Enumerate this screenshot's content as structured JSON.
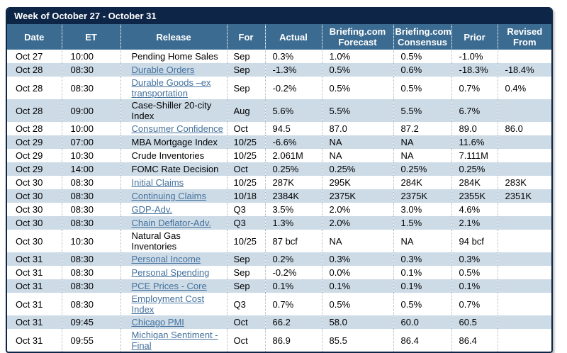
{
  "title": "Week of October 27 - October 31",
  "columns": [
    {
      "key": "date",
      "label": "Date"
    },
    {
      "key": "et",
      "label": "ET"
    },
    {
      "key": "release",
      "label": "Release"
    },
    {
      "key": "for",
      "label": "For"
    },
    {
      "key": "actual",
      "label": "Actual"
    },
    {
      "key": "forecast",
      "label": "Briefing.com Forecast"
    },
    {
      "key": "consensus",
      "label": "Briefing.com Consensus"
    },
    {
      "key": "prior",
      "label": "Prior"
    },
    {
      "key": "revised",
      "label": "Revised From"
    }
  ],
  "rows": [
    {
      "date": "Oct 27",
      "et": "10:00",
      "release": "Pending Home Sales",
      "link": false,
      "for": "Sep",
      "actual": "0.3%",
      "forecast": "1.0%",
      "consensus": "0.5%",
      "prior": "-1.0%",
      "revised": ""
    },
    {
      "date": "Oct 28",
      "et": "08:30",
      "release": "Durable Orders",
      "link": true,
      "for": "Sep",
      "actual": "-1.3%",
      "forecast": "0.5%",
      "consensus": "0.6%",
      "prior": "-18.3%",
      "revised": "-18.4%"
    },
    {
      "date": "Oct 28",
      "et": "08:30",
      "release": "Durable Goods –ex transportation",
      "link": true,
      "for": "Sep",
      "actual": "-0.2%",
      "forecast": "0.5%",
      "consensus": "0.5%",
      "prior": "0.7%",
      "revised": "0.4%"
    },
    {
      "date": "Oct 28",
      "et": "09:00",
      "release": "Case-Shiller 20-city Index",
      "link": false,
      "for": "Aug",
      "actual": "5.6%",
      "forecast": "5.5%",
      "consensus": "5.5%",
      "prior": "6.7%",
      "revised": ""
    },
    {
      "date": "Oct 28",
      "et": "10:00",
      "release": "Consumer Confidence",
      "link": true,
      "for": "Oct",
      "actual": "94.5",
      "forecast": "87.0",
      "consensus": "87.2",
      "prior": "89.0",
      "revised": "86.0"
    },
    {
      "date": "Oct 29",
      "et": "07:00",
      "release": "MBA Mortgage Index",
      "link": false,
      "for": "10/25",
      "actual": "-6.6%",
      "forecast": "NA",
      "consensus": "NA",
      "prior": "11.6%",
      "revised": ""
    },
    {
      "date": "Oct 29",
      "et": "10:30",
      "release": "Crude Inventories",
      "link": false,
      "for": "10/25",
      "actual": "2.061M",
      "forecast": "NA",
      "consensus": "NA",
      "prior": "7.111M",
      "revised": ""
    },
    {
      "date": "Oct 29",
      "et": "14:00",
      "release": "FOMC Rate Decision",
      "link": false,
      "for": "Oct",
      "actual": "0.25%",
      "forecast": "0.25%",
      "consensus": "0.25%",
      "prior": "0.25%",
      "revised": ""
    },
    {
      "date": "Oct 30",
      "et": "08:30",
      "release": "Initial Claims",
      "link": true,
      "for": "10/25",
      "actual": "287K",
      "forecast": "295K",
      "consensus": "284K",
      "prior": "284K",
      "revised": "283K"
    },
    {
      "date": "Oct 30",
      "et": "08:30",
      "release": "Continuing Claims",
      "link": true,
      "for": "10/18",
      "actual": "2384K",
      "forecast": "2375K",
      "consensus": "2375K",
      "prior": "2355K",
      "revised": "2351K"
    },
    {
      "date": "Oct 30",
      "et": "08:30",
      "release": "GDP-Adv.",
      "link": true,
      "for": "Q3",
      "actual": "3.5%",
      "forecast": "2.0%",
      "consensus": "3.0%",
      "prior": "4.6%",
      "revised": ""
    },
    {
      "date": "Oct 30",
      "et": "08:30",
      "release": "Chain Deflator-Adv.",
      "link": true,
      "for": "Q3",
      "actual": "1.3%",
      "forecast": "2.0%",
      "consensus": "1.5%",
      "prior": "2.1%",
      "revised": ""
    },
    {
      "date": "Oct 30",
      "et": "10:30",
      "release": "Natural Gas Inventories",
      "link": false,
      "for": "10/25",
      "actual": "87 bcf",
      "forecast": "NA",
      "consensus": "NA",
      "prior": "94 bcf",
      "revised": ""
    },
    {
      "date": "Oct 31",
      "et": "08:30",
      "release": "Personal Income",
      "link": true,
      "for": "Sep",
      "actual": "0.2%",
      "forecast": "0.3%",
      "consensus": "0.3%",
      "prior": "0.3%",
      "revised": ""
    },
    {
      "date": "Oct 31",
      "et": "08:30",
      "release": "Personal Spending",
      "link": true,
      "for": "Sep",
      "actual": "-0.2%",
      "forecast": "0.0%",
      "consensus": "0.1%",
      "prior": "0.5%",
      "revised": ""
    },
    {
      "date": "Oct 31",
      "et": "08:30",
      "release": "PCE Prices - Core",
      "link": true,
      "for": "Sep",
      "actual": "0.1%",
      "forecast": "0.1%",
      "consensus": "0.1%",
      "prior": "0.1%",
      "revised": ""
    },
    {
      "date": "Oct 31",
      "et": "08:30",
      "release": "Employment Cost Index",
      "link": true,
      "for": "Q3",
      "actual": "0.7%",
      "forecast": "0.5%",
      "consensus": "0.5%",
      "prior": "0.7%",
      "revised": ""
    },
    {
      "date": "Oct 31",
      "et": "09:45",
      "release": "Chicago PMI",
      "link": true,
      "for": "Oct",
      "actual": "66.2",
      "forecast": "58.0",
      "consensus": "60.0",
      "prior": "60.5",
      "revised": ""
    },
    {
      "date": "Oct 31",
      "et": "09:55",
      "release": "Michigan Sentiment - Final",
      "link": true,
      "for": "Oct",
      "actual": "86.9",
      "forecast": "85.5",
      "consensus": "86.4",
      "prior": "86.4",
      "revised": ""
    }
  ],
  "colors": {
    "title_bar": "#0d2547",
    "header": "#3c6b91",
    "row_alt": "#cddbe7",
    "link": "#44719d",
    "border": "#0d2547"
  }
}
